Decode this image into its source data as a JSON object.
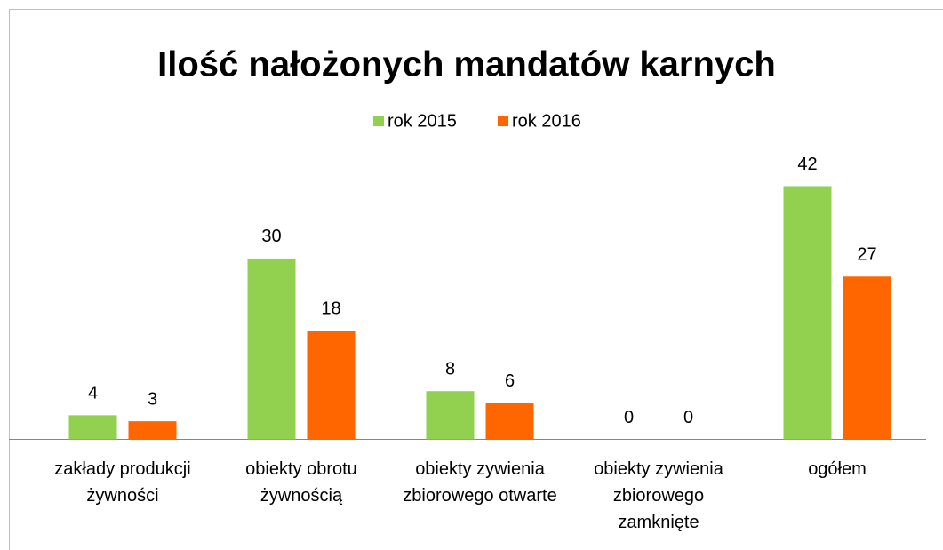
{
  "chart_data": {
    "type": "bar",
    "title": "Ilość nałożonych mandatów karnych",
    "categories": [
      "zakłady produkcji żywności",
      "obiekty obrotu żywnością",
      "obiekty zywienia zbiorowego otwarte",
      "obiekty zywienia zbiorowego zamknięte",
      "ogółem"
    ],
    "series": [
      {
        "name": "rok 2015",
        "color": "#92d050",
        "values": [
          4,
          30,
          8,
          0,
          42
        ]
      },
      {
        "name": "rok 2016",
        "color": "#ff6600",
        "values": [
          3,
          18,
          6,
          0,
          27
        ]
      }
    ],
    "legend": "top"
  }
}
